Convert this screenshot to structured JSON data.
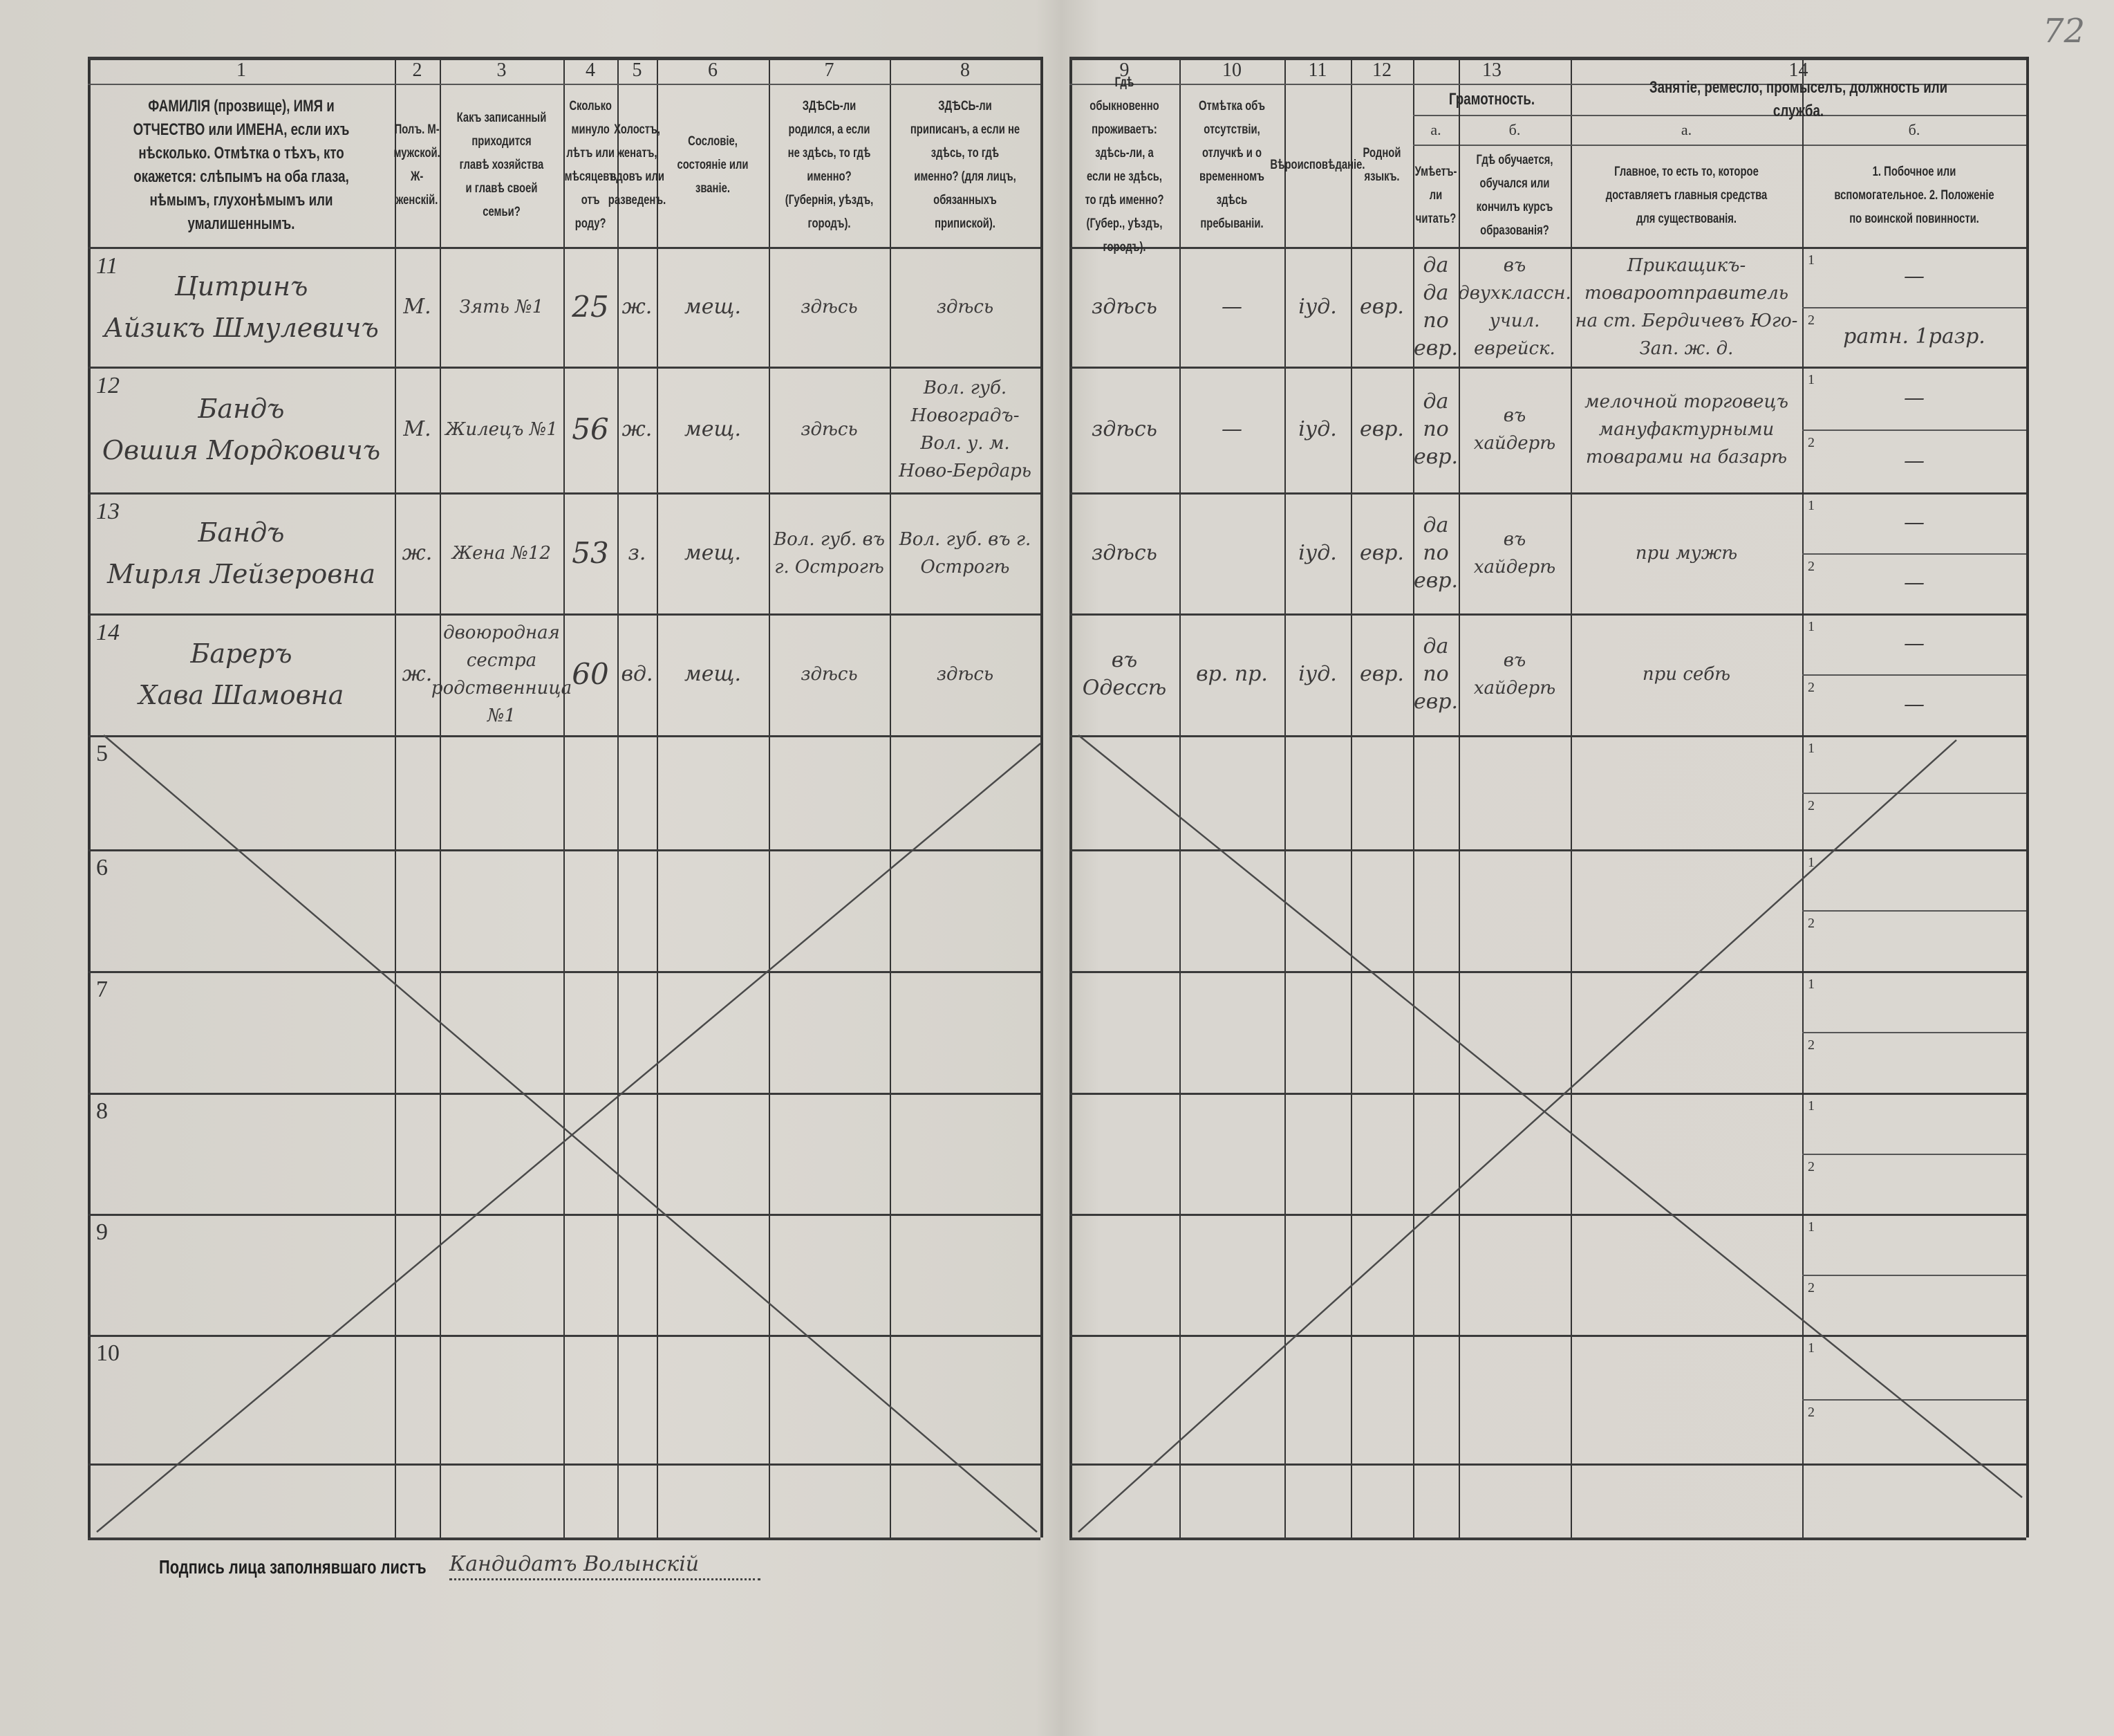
{
  "page_number": "72",
  "columns": [
    {
      "num": "1",
      "header": "ФАМИЛІЯ (прозвище), ИМЯ и ОТЧЕСТВО или ИМЕНА, если ихъ нѣсколько. Отмѣтка о тѣхъ, кто окажется: слѣпымъ на оба глаза, нѣмымъ, глухонѣмымъ или умалишеннымъ."
    },
    {
      "num": "2",
      "header": "Полъ. М-мужской. Ж-женскій."
    },
    {
      "num": "3",
      "header": "Какъ записанный приходится главѣ хозяйства и главѣ своей семьи?"
    },
    {
      "num": "4",
      "header": "Сколько минуло лѣтъ или мѣсяцевъ отъ роду?"
    },
    {
      "num": "5",
      "header": "Холостъ, женатъ, вдовъ или разведенъ."
    },
    {
      "num": "6",
      "header": "Сословіе, состояніе или званіе."
    },
    {
      "num": "7",
      "header": "ЗДѢСЬ-ли родился, а если не здѣсь, то гдѣ именно? (Губернія, уѣздъ, городъ)."
    },
    {
      "num": "8",
      "header": "ЗДѢСЬ-ли приписанъ, а если не здѣсь, то гдѣ именно? (для лицъ, обязанныхъ припиской)."
    },
    {
      "num": "9",
      "header": "Гдѣ обыкновенно проживаетъ: здѣсь-ли, а если не здѣсь, то гдѣ именно? (Губер., уѣздъ, городъ)."
    },
    {
      "num": "10",
      "header": "Отмѣтка объ отсутствіи, отлучкѣ и о временномъ здѣсь пребываніи."
    },
    {
      "num": "11",
      "header": "Вѣроисповѣданіе."
    },
    {
      "num": "12",
      "header": "Родной языкъ."
    },
    {
      "num": "13",
      "group": "Грамотность.",
      "subs": [
        {
          "letter": "а.",
          "header": "Умѣетъ-ли читать?"
        },
        {
          "letter": "б.",
          "header": "Гдѣ обучается, обучался или кончилъ курсъ образованія?"
        }
      ]
    },
    {
      "num": "14",
      "group": "Занятіе, ремесло, промыселъ, должность или служба.",
      "subs": [
        {
          "letter": "а.",
          "header": "Главное, то есть то, которое доставляетъ главныя средства для существованія."
        },
        {
          "letter": "б.",
          "header": "1. Побочное или вспомогательное. 2. Положеніе по воинской повинности."
        }
      ]
    }
  ],
  "rows": [
    {
      "no": "11",
      "surname": "Цитринъ",
      "name": "Айзикъ Шмулевичъ",
      "sex": "М.",
      "relation": "Зять №1",
      "age": "25",
      "marital": "ж.",
      "estate": "мещ.",
      "born": "здѣсь",
      "registered": "здѣсь",
      "residence": "здѣсь",
      "absence": "—",
      "religion": "iуд.",
      "language": "евр.",
      "can_read": "да да по евр.",
      "education": "въ двухклассн. учил. еврейск.",
      "occupation": "Прикащикъ-товароотправитель на ст. Бердичевъ Юго-Зап. ж. д.",
      "side": "—",
      "military": "ратн. 1разр."
    },
    {
      "no": "12",
      "surname": "Бандъ",
      "name": "Овшия Мордковичъ",
      "sex": "М.",
      "relation": "Жилецъ №1",
      "age": "56",
      "marital": "ж.",
      "estate": "мещ.",
      "born": "здѣсь",
      "registered": "Вол. губ. Новоградъ-Вол. у. м. Ново-Бердарь",
      "residence": "здѣсь",
      "absence": "—",
      "religion": "iуд.",
      "language": "евр.",
      "can_read": "да по евр.",
      "education": "въ хайдерѣ",
      "occupation": "мелочной торговецъ мануфактурными товарами на базарѣ",
      "side": "—",
      "military": "—"
    },
    {
      "no": "13",
      "surname": "Бандъ",
      "name": "Мирля Лейзеровна",
      "sex": "ж.",
      "relation": "Жена №12",
      "age": "53",
      "marital": "з.",
      "estate": "мещ.",
      "born": "Вол. губ. въ г. Острогѣ",
      "registered": "Вол. губ. въ г. Острогѣ",
      "residence": "здѣсь",
      "absence": "",
      "religion": "iуд.",
      "language": "евр.",
      "can_read": "да по евр.",
      "education": "въ хайдерѣ",
      "occupation": "при мужѣ",
      "side": "—",
      "military": "—"
    },
    {
      "no": "14",
      "surname": "Бареръ",
      "name": "Хава Шамовна",
      "sex": "ж.",
      "relation": "двоюродная сестра родственница №1",
      "age": "60",
      "marital": "вд.",
      "estate": "мещ.",
      "born": "здѣсь",
      "registered": "здѣсь",
      "residence": "въ Одессѣ",
      "absence": "вр. пр.",
      "religion": "iуд.",
      "language": "евр.",
      "can_read": "да по евр.",
      "education": "въ хайдерѣ",
      "occupation": "при себѣ",
      "side": "—",
      "military": "—"
    }
  ],
  "empty_rows": [
    "5",
    "6",
    "7",
    "8",
    "9",
    "10"
  ],
  "sub_row_labels": [
    "1",
    "2"
  ],
  "signature": {
    "label": "Подпись лица заполнявшаго листъ",
    "value": "Кандидатъ Волынскій"
  }
}
